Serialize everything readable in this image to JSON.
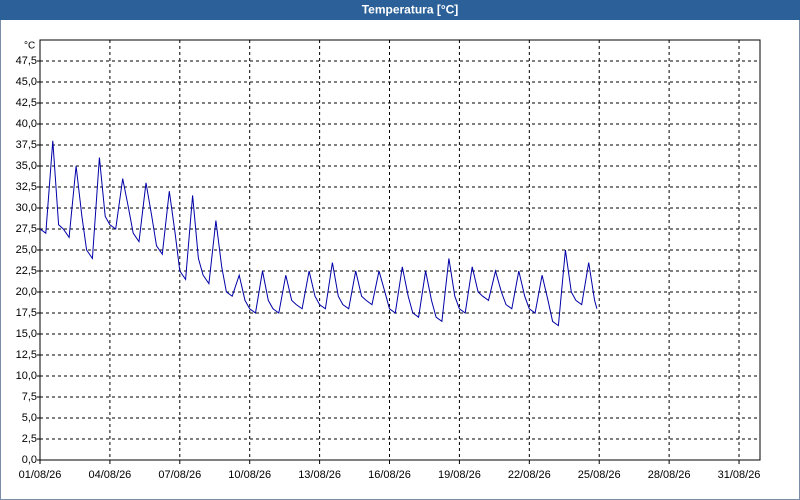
{
  "chart_data": {
    "type": "line",
    "title": "Temperatura [°C]",
    "yunit": "°C",
    "x": [
      1,
      1.25,
      1.55,
      1.8,
      2,
      2.25,
      2.55,
      2.8,
      3,
      3.25,
      3.55,
      3.8,
      4,
      4.25,
      4.55,
      4.8,
      5,
      5.25,
      5.55,
      5.8,
      6,
      6.25,
      6.55,
      6.8,
      7,
      7.25,
      7.55,
      7.8,
      8,
      8.25,
      8.55,
      8.8,
      9,
      9.25,
      9.55,
      9.8,
      10,
      10.25,
      10.55,
      10.8,
      11,
      11.25,
      11.55,
      11.8,
      12,
      12.25,
      12.55,
      12.8,
      13,
      13.25,
      13.55,
      13.8,
      14,
      14.25,
      14.55,
      14.8,
      15,
      15.25,
      15.55,
      15.8,
      16,
      16.25,
      16.55,
      16.8,
      17,
      17.25,
      17.55,
      17.8,
      18,
      18.25,
      18.55,
      18.8,
      19,
      19.25,
      19.55,
      19.8,
      20,
      20.25,
      20.55,
      20.8,
      21,
      21.25,
      21.55,
      21.8,
      22,
      22.25,
      22.55,
      22.8,
      23,
      23.25,
      23.55,
      23.8,
      24,
      24.25,
      24.55,
      24.8,
      24.9
    ],
    "series": [
      {
        "name": "Temperatura",
        "color": "#0000a8",
        "values": [
          27.5,
          27,
          38,
          28,
          27.5,
          26.5,
          35,
          29,
          25,
          24,
          36,
          29,
          28,
          27.5,
          33.5,
          30,
          27,
          26,
          33,
          29,
          25.5,
          24.5,
          32,
          27,
          22.5,
          21.5,
          31.5,
          24,
          22,
          21,
          28.5,
          23,
          20,
          19.5,
          22,
          19,
          18,
          17.5,
          22.5,
          19,
          18,
          17.5,
          22,
          19,
          18.5,
          18,
          22.5,
          19.5,
          18.5,
          18,
          23.5,
          19.5,
          18.5,
          18,
          22.5,
          19.5,
          19,
          18.5,
          22.5,
          20,
          18,
          17.5,
          23,
          19.5,
          17.5,
          17,
          22.5,
          19,
          17,
          16.5,
          24,
          19.5,
          18,
          17.5,
          23,
          20,
          19.5,
          19,
          22.5,
          20,
          18.5,
          18,
          22.5,
          19.5,
          18,
          17.5,
          22,
          19,
          16.5,
          16,
          25,
          20,
          19,
          18.5,
          23.5,
          19,
          18
        ]
      }
    ],
    "xlim": [
      1,
      31.9
    ],
    "xticks": [
      {
        "value": 1,
        "label": "01/08/26"
      },
      {
        "value": 4,
        "label": "04/08/26"
      },
      {
        "value": 7,
        "label": "07/08/26"
      },
      {
        "value": 10,
        "label": "10/08/26"
      },
      {
        "value": 13,
        "label": "13/08/26"
      },
      {
        "value": 16,
        "label": "16/08/26"
      },
      {
        "value": 19,
        "label": "19/08/26"
      },
      {
        "value": 22,
        "label": "22/08/26"
      },
      {
        "value": 25,
        "label": "25/08/26"
      },
      {
        "value": 28,
        "label": "28/08/26"
      },
      {
        "value": 31,
        "label": "31/08/26"
      }
    ],
    "ylim": [
      0,
      50
    ],
    "yticks": [
      {
        "value": 0,
        "label": "0,0"
      },
      {
        "value": 2.5,
        "label": "2,5"
      },
      {
        "value": 5,
        "label": "5,0"
      },
      {
        "value": 7.5,
        "label": "7,5"
      },
      {
        "value": 10,
        "label": "10,0"
      },
      {
        "value": 12.5,
        "label": "12,5"
      },
      {
        "value": 15,
        "label": "15,0"
      },
      {
        "value": 17.5,
        "label": "17,5"
      },
      {
        "value": 20,
        "label": "20,0"
      },
      {
        "value": 22.5,
        "label": "22,5"
      },
      {
        "value": 25,
        "label": "25,0"
      },
      {
        "value": 27.5,
        "label": "27,5"
      },
      {
        "value": 30,
        "label": "30,0"
      },
      {
        "value": 32.5,
        "label": "32,5"
      },
      {
        "value": 35,
        "label": "35,0"
      },
      {
        "value": 37.5,
        "label": "37,5"
      },
      {
        "value": 40,
        "label": "40,0"
      },
      {
        "value": 42.5,
        "label": "42,5"
      },
      {
        "value": 45,
        "label": "45,0"
      },
      {
        "value": 47.5,
        "label": "47,5"
      }
    ],
    "grid": true
  }
}
